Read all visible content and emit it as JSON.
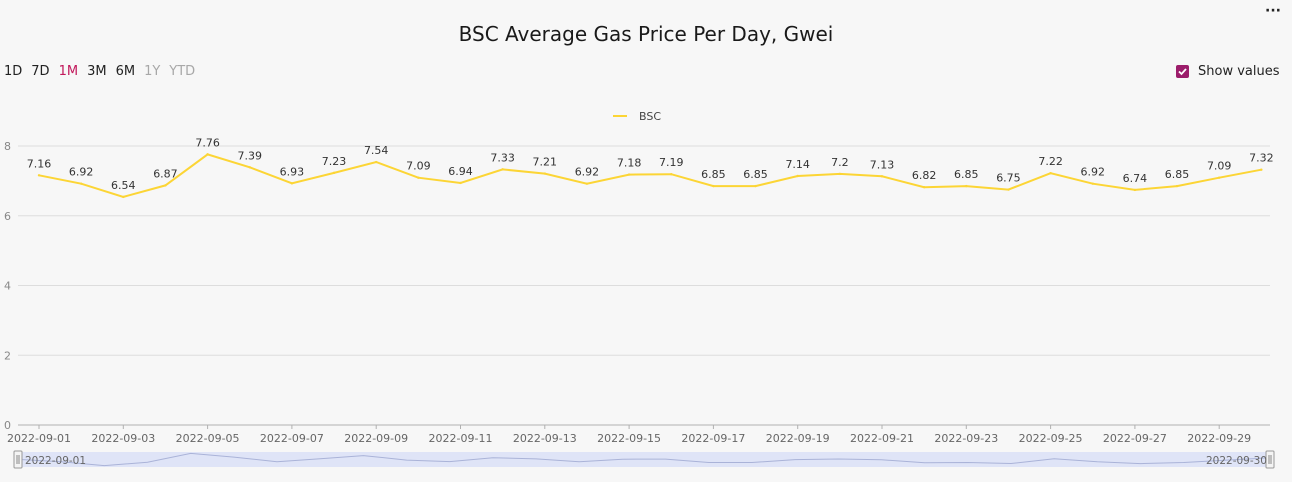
{
  "toolbar": {
    "more_label": "···",
    "ranges": [
      {
        "label": "1D",
        "state": "normal"
      },
      {
        "label": "7D",
        "state": "normal"
      },
      {
        "label": "1M",
        "state": "active"
      },
      {
        "label": "3M",
        "state": "normal"
      },
      {
        "label": "6M",
        "state": "normal"
      },
      {
        "label": "1Y",
        "state": "disabled"
      },
      {
        "label": "YTD",
        "state": "disabled"
      }
    ],
    "show_values_label": "Show values",
    "show_values_checked": true
  },
  "colors": {
    "series": "#fcd535",
    "accent": "#c2185b",
    "checkbox": "#9c1d6b",
    "grid": "#dddddd",
    "navigator_fill": "#dfe4f7"
  },
  "chart_data": {
    "type": "line",
    "title": "BSC Average Gas Price Per Day, Gwei",
    "x": [
      "2022-09-01",
      "2022-09-02",
      "2022-09-03",
      "2022-09-04",
      "2022-09-05",
      "2022-09-06",
      "2022-09-07",
      "2022-09-08",
      "2022-09-09",
      "2022-09-10",
      "2022-09-11",
      "2022-09-12",
      "2022-09-13",
      "2022-09-14",
      "2022-09-15",
      "2022-09-16",
      "2022-09-17",
      "2022-09-18",
      "2022-09-19",
      "2022-09-20",
      "2022-09-21",
      "2022-09-22",
      "2022-09-23",
      "2022-09-24",
      "2022-09-25",
      "2022-09-26",
      "2022-09-27",
      "2022-09-28",
      "2022-09-29",
      "2022-09-30"
    ],
    "x_tick_labels": [
      "2022-09-01",
      "2022-09-03",
      "2022-09-05",
      "2022-09-07",
      "2022-09-09",
      "2022-09-11",
      "2022-09-13",
      "2022-09-15",
      "2022-09-17",
      "2022-09-19",
      "2022-09-21",
      "2022-09-23",
      "2022-09-25",
      "2022-09-27",
      "2022-09-29"
    ],
    "series": [
      {
        "name": "BSC",
        "values": [
          7.16,
          6.92,
          6.54,
          6.87,
          7.76,
          7.39,
          6.93,
          7.23,
          7.54,
          7.09,
          6.94,
          7.33,
          7.21,
          6.92,
          7.18,
          7.19,
          6.85,
          6.85,
          7.14,
          7.2,
          7.13,
          6.82,
          6.85,
          6.75,
          7.22,
          6.92,
          6.74,
          6.85,
          7.09,
          7.32
        ]
      }
    ],
    "ylim": [
      0,
      8
    ],
    "yticks": [
      0,
      2,
      4,
      6,
      8
    ],
    "grid": true,
    "legend_position": "top-center",
    "show_values": true,
    "navigator": {
      "start_label": "2022-09-01",
      "end_label": "2022-09-30"
    }
  }
}
